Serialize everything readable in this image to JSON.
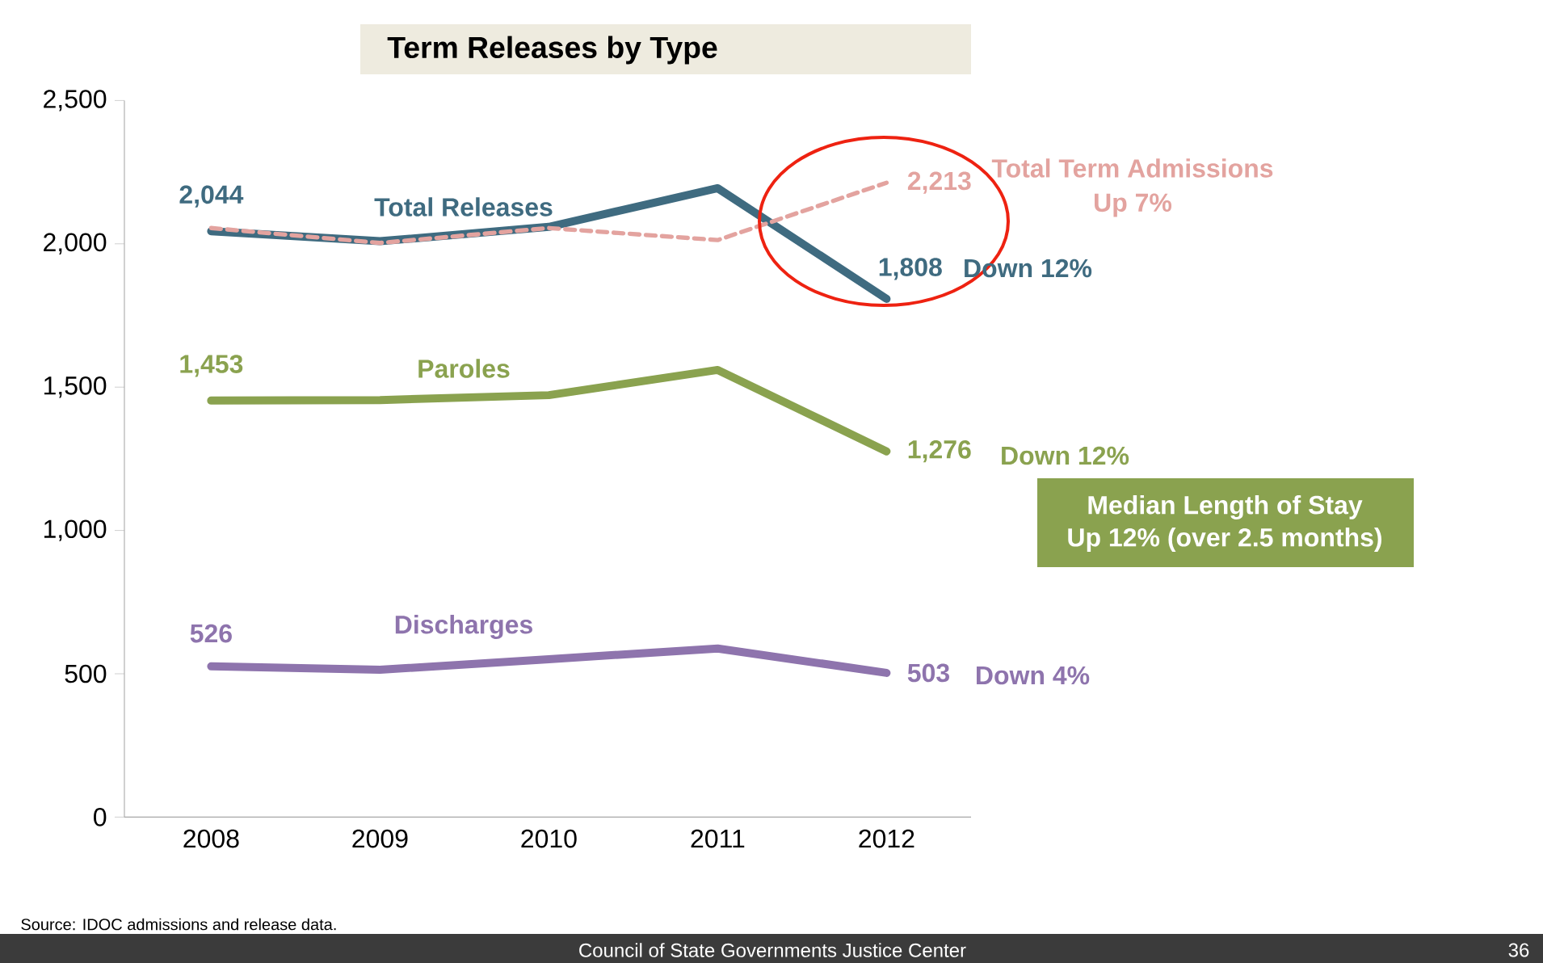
{
  "chart_data": {
    "type": "line",
    "title": "Term Releases by Type",
    "categories": [
      "2008",
      "2009",
      "2010",
      "2011",
      "2012"
    ],
    "series": [
      {
        "name": "Total Releases",
        "color": "#3f6b80",
        "values": [
          2044,
          2009,
          2059,
          2194,
          1808
        ],
        "value_labels": [
          "2,044",
          null,
          null,
          null,
          "1,808"
        ]
      },
      {
        "name": "Total Term Admissions",
        "color": "#e3a39f",
        "line_style": "dashed",
        "values": [
          2055,
          2003,
          2055,
          2013,
          2213
        ],
        "value_labels": [
          null,
          null,
          null,
          null,
          "2,213"
        ]
      },
      {
        "name": "Paroles",
        "color": "#8aa24f",
        "values": [
          1453,
          1455,
          1472,
          1560,
          1276
        ],
        "value_labels": [
          "1,453",
          null,
          null,
          null,
          "1,276"
        ]
      },
      {
        "name": "Discharges",
        "color": "#8e74ad",
        "values": [
          526,
          514,
          551,
          588,
          503
        ],
        "value_labels": [
          "526",
          null,
          null,
          null,
          "503"
        ]
      }
    ],
    "ylim": [
      0,
      2500
    ],
    "yticks": [
      0,
      500,
      {
        "value": 1000,
        "label": "1,000"
      },
      {
        "value": 1500,
        "label": "1,500"
      },
      {
        "value": 2000,
        "label": "2,000"
      },
      {
        "value": 2500,
        "label": "2,500"
      }
    ],
    "annotations": [
      "Up 7%",
      "Down 12%",
      "Down 12%",
      "Down 4%",
      "Median Length of Stay",
      "Up 12% (over 2.5 months)",
      "Source: IDOC admissions and release data.",
      "Council of State Governments Justice Center",
      "36"
    ]
  }
}
